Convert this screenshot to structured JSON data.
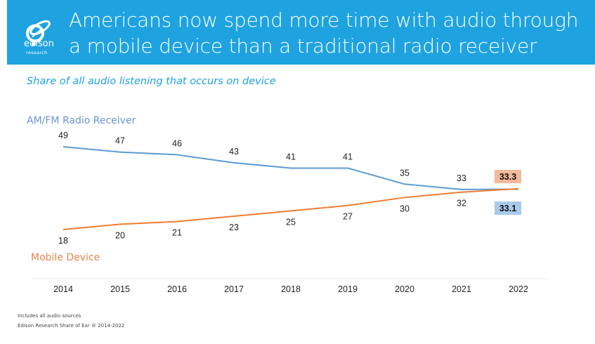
{
  "header": {
    "logo_word": "edison",
    "logo_sub": "research",
    "title_line1": "Americans now spend more time with audio through",
    "title_line2": "a mobile device than a traditional radio receiver",
    "brand_color": "#1fa3e0"
  },
  "footnotes": {
    "line1": "Includes all audio sources",
    "line2": "Edison Research Share of Ear ® 2014-2022"
  },
  "chart_data": {
    "type": "line",
    "title": "Share of all audio listening that occurs on device",
    "xlabel": "",
    "ylabel": "",
    "x": [
      "2014",
      "2015",
      "2016",
      "2017",
      "2018",
      "2019",
      "2020",
      "2021",
      "2022"
    ],
    "series": [
      {
        "name": "AM/FM Radio Receiver",
        "color": "#5b9bd5",
        "values": [
          49,
          47,
          46,
          43,
          41,
          41,
          35,
          33,
          33.1
        ],
        "final_label_bg": "#a9c9ea"
      },
      {
        "name": "Mobile Device",
        "color": "#ed7d31",
        "values": [
          18,
          20,
          21,
          23,
          25,
          27,
          30,
          32,
          33.3
        ],
        "final_label_bg": "#f4b89a"
      }
    ],
    "grid": false,
    "legend": "inline"
  }
}
